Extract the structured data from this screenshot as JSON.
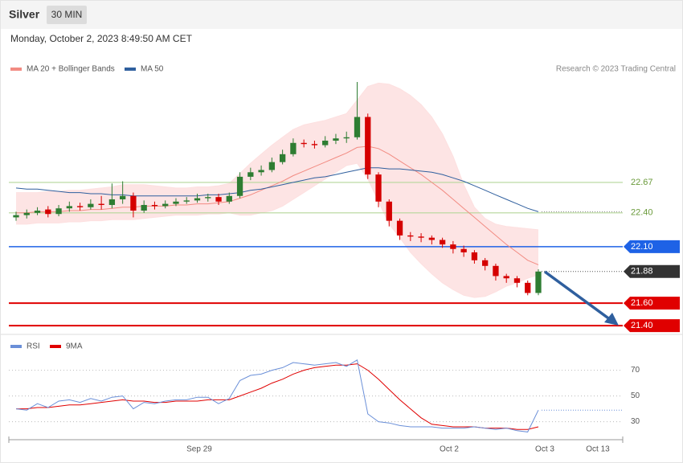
{
  "chart_data": {
    "type": "candlestick",
    "title": "Silver",
    "timeframe": "30 MIN",
    "timestamp": "Monday, October 2, 2023 8:49:50 AM CET",
    "credit": "Research © 2023 Trading Central",
    "x_labels": [
      "Sep 29",
      "Oct 2",
      "Oct 3",
      "Oct 13"
    ],
    "up_color": "#2e7d32",
    "down_color": "#d50000",
    "ylim": [
      21.33,
      23.56
    ],
    "open": [
      22.36,
      22.38,
      22.4,
      22.43,
      22.39,
      22.44,
      22.46,
      22.45,
      22.48,
      22.47,
      22.52,
      22.55,
      22.42,
      22.47,
      22.46,
      22.48,
      22.5,
      22.51,
      22.53,
      22.54,
      22.5,
      22.55,
      22.72,
      22.76,
      22.78,
      22.85,
      22.92,
      23.02,
      23.01,
      23.0,
      23.04,
      23.06,
      23.07,
      23.25,
      22.74,
      22.5,
      22.33,
      22.2,
      22.19,
      22.18,
      22.16,
      22.12,
      22.08,
      22.05,
      21.98,
      21.93,
      21.84,
      21.82,
      21.78,
      21.69
    ],
    "high": [
      22.41,
      22.43,
      22.45,
      22.46,
      22.47,
      22.5,
      22.49,
      22.52,
      22.55,
      22.66,
      22.68,
      22.58,
      22.51,
      22.5,
      22.51,
      22.53,
      22.54,
      22.57,
      22.57,
      22.57,
      22.58,
      22.76,
      22.8,
      22.82,
      22.89,
      22.96,
      23.06,
      23.05,
      23.04,
      23.08,
      23.1,
      23.12,
      23.56,
      23.28,
      22.76,
      22.52,
      22.35,
      22.23,
      22.22,
      22.2,
      22.18,
      22.15,
      22.11,
      22.07,
      22.0,
      21.95,
      21.86,
      21.84,
      21.8,
      21.9
    ],
    "low": [
      22.33,
      22.35,
      22.38,
      22.36,
      22.37,
      22.41,
      22.42,
      22.43,
      22.43,
      22.44,
      22.48,
      22.36,
      22.4,
      22.43,
      22.44,
      22.46,
      22.48,
      22.49,
      22.5,
      22.47,
      22.48,
      22.53,
      22.69,
      22.73,
      22.76,
      22.83,
      22.9,
      22.98,
      22.97,
      22.98,
      23.01,
      23.02,
      23.05,
      22.7,
      22.45,
      22.28,
      22.16,
      22.15,
      22.14,
      22.12,
      22.09,
      22.04,
      22.01,
      21.95,
      21.89,
      21.8,
      21.78,
      21.74,
      21.67,
      21.67
    ],
    "close": [
      22.38,
      22.4,
      22.42,
      22.39,
      22.44,
      22.46,
      22.45,
      22.48,
      22.47,
      22.52,
      22.55,
      22.42,
      22.47,
      22.46,
      22.48,
      22.5,
      22.51,
      22.53,
      22.54,
      22.5,
      22.55,
      22.72,
      22.76,
      22.78,
      22.85,
      22.92,
      23.02,
      23.01,
      23.0,
      23.04,
      23.06,
      23.07,
      23.25,
      22.74,
      22.5,
      22.33,
      22.2,
      22.19,
      22.18,
      22.16,
      22.12,
      22.08,
      22.05,
      21.98,
      21.93,
      21.84,
      21.82,
      21.78,
      21.69,
      21.88
    ],
    "ma20": {
      "name": "MA 20 + Bollinger Bands",
      "color": "#f28b82",
      "values": [
        22.4,
        22.4,
        22.41,
        22.41,
        22.41,
        22.42,
        22.42,
        22.43,
        22.43,
        22.44,
        22.45,
        22.45,
        22.46,
        22.46,
        22.46,
        22.47,
        22.47,
        22.48,
        22.48,
        22.49,
        22.5,
        22.53,
        22.56,
        22.6,
        22.64,
        22.68,
        22.73,
        22.77,
        22.81,
        22.85,
        22.89,
        22.93,
        22.98,
        22.99,
        22.97,
        22.92,
        22.86,
        22.8,
        22.74,
        22.67,
        22.6,
        22.52,
        22.44,
        22.36,
        22.28,
        22.2,
        22.12,
        22.05,
        21.98,
        21.94
      ],
      "upper": [
        22.58,
        22.58,
        22.58,
        22.59,
        22.59,
        22.6,
        22.6,
        22.61,
        22.62,
        22.63,
        22.65,
        22.65,
        22.65,
        22.64,
        22.63,
        22.62,
        22.62,
        22.63,
        22.63,
        22.64,
        22.66,
        22.75,
        22.84,
        22.92,
        23.0,
        23.07,
        23.14,
        23.18,
        23.2,
        23.22,
        23.25,
        23.28,
        23.4,
        23.52,
        23.55,
        23.54,
        23.5,
        23.44,
        23.36,
        23.25,
        23.1,
        22.9,
        22.65,
        22.45,
        22.35,
        22.3,
        22.28,
        22.27,
        22.26,
        22.25
      ],
      "lower": [
        22.3,
        22.3,
        22.31,
        22.31,
        22.31,
        22.32,
        22.32,
        22.33,
        22.33,
        22.34,
        22.34,
        22.34,
        22.35,
        22.36,
        22.37,
        22.38,
        22.38,
        22.38,
        22.39,
        22.39,
        22.4,
        22.38,
        22.38,
        22.4,
        22.42,
        22.46,
        22.52,
        22.58,
        22.64,
        22.7,
        22.76,
        22.82,
        22.84,
        22.7,
        22.5,
        22.3,
        22.18,
        22.05,
        21.95,
        21.86,
        21.78,
        21.72,
        21.67,
        21.65,
        21.66,
        21.7,
        21.75,
        21.78,
        21.82,
        21.85
      ]
    },
    "ma50": {
      "name": "MA 50",
      "color": "#2f5f9e",
      "values": [
        22.62,
        22.61,
        22.61,
        22.6,
        22.59,
        22.58,
        22.58,
        22.57,
        22.57,
        22.56,
        22.56,
        22.55,
        22.55,
        22.55,
        22.55,
        22.55,
        22.55,
        22.55,
        22.56,
        22.56,
        22.57,
        22.58,
        22.6,
        22.61,
        22.63,
        22.65,
        22.67,
        22.69,
        22.71,
        22.72,
        22.74,
        22.76,
        22.78,
        22.8,
        22.8,
        22.79,
        22.79,
        22.78,
        22.77,
        22.76,
        22.74,
        22.71,
        22.68,
        22.64,
        22.6,
        22.56,
        22.52,
        22.48,
        22.44,
        22.41
      ]
    },
    "levels": [
      {
        "value": 22.67,
        "label": "22.67",
        "color": "#b5d69a",
        "tag": false
      },
      {
        "value": 22.4,
        "label": "22.40",
        "color": "#b5d69a",
        "tag": false
      },
      {
        "value": 22.1,
        "label": "22.10",
        "color": "#1e62e6",
        "tag": true
      },
      {
        "value": 21.6,
        "label": "21.60",
        "color": "#e00000",
        "tag": true
      },
      {
        "value": 21.4,
        "label": "21.40",
        "color": "#e00000",
        "tag": true
      }
    ],
    "rsi": {
      "ylim": [
        16,
        96
      ],
      "yticks": [
        30,
        50,
        70
      ],
      "series": [
        {
          "name": "RSI",
          "color": "#6a8fd8",
          "values": [
            40,
            39,
            44,
            41,
            46,
            47,
            45,
            48,
            46,
            49,
            50,
            40,
            45,
            44,
            46,
            47,
            47,
            49,
            49,
            44,
            48,
            62,
            66,
            67,
            70,
            72,
            76,
            75,
            74,
            75,
            76,
            73,
            78,
            36,
            30,
            29,
            27,
            26,
            26,
            26,
            25,
            25,
            25,
            26,
            25,
            24,
            25,
            23,
            22,
            39
          ]
        },
        {
          "name": "9MA",
          "color": "#e00000",
          "values": [
            40,
            40,
            41,
            41,
            42,
            43,
            43,
            44,
            45,
            46,
            47,
            46,
            46,
            45,
            45,
            46,
            46,
            46,
            47,
            47,
            47,
            50,
            53,
            56,
            60,
            63,
            67,
            70,
            72,
            73,
            74,
            74,
            75,
            70,
            63,
            55,
            47,
            40,
            33,
            28,
            27,
            26,
            26,
            26,
            25,
            25,
            25,
            24,
            24,
            26
          ]
        }
      ]
    }
  }
}
